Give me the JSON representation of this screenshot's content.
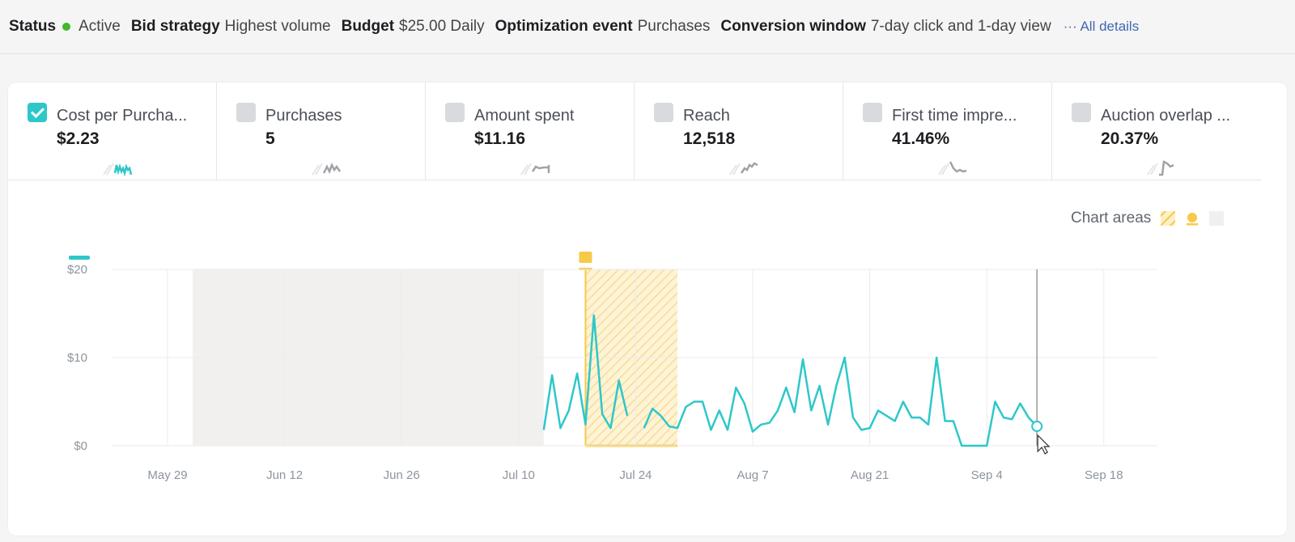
{
  "topbar": {
    "status_label": "Status",
    "status_value": "Active",
    "bid_label": "Bid strategy",
    "bid_value": "Highest volume",
    "budget_label": "Budget",
    "budget_value": "$25.00 Daily",
    "opt_label": "Optimization event",
    "opt_value": "Purchases",
    "conv_label": "Conversion window",
    "conv_value": "7-day click and 1-day view",
    "all_details": "··· All details"
  },
  "metrics": [
    {
      "label": "Cost per Purcha...",
      "value": "$2.23",
      "checked": true
    },
    {
      "label": "Purchases",
      "value": "5",
      "checked": false
    },
    {
      "label": "Amount spent",
      "value": "$11.16",
      "checked": false
    },
    {
      "label": "Reach",
      "value": "12,518",
      "checked": false
    },
    {
      "label": "First time impre...",
      "value": "41.46%",
      "checked": false
    },
    {
      "label": "Auction overlap ...",
      "value": "20.37%",
      "checked": false
    }
  ],
  "chart_areas_label": "Chart areas",
  "colors": {
    "series": "#2ec7c9",
    "highlight": "#f7c948",
    "shade": "#f1f0ee"
  },
  "chart_data": {
    "type": "line",
    "ylim": [
      0,
      20
    ],
    "y_ticks": [
      "$0",
      "$10",
      "$20"
    ],
    "x_ticks": [
      "May 29",
      "Jun 12",
      "Jun 26",
      "Jul 10",
      "Jul 24",
      "Aug 7",
      "Aug 21",
      "Sep 4",
      "Sep 18"
    ],
    "segments": [
      [
        [
          "Jul 13",
          1.8
        ],
        [
          "Jul 14",
          8
        ],
        [
          "Jul 15",
          2
        ],
        [
          "Jul 16",
          4
        ],
        [
          "Jul 17",
          8.2
        ],
        [
          "Jul 18",
          2.4
        ],
        [
          "Jul 19",
          14.8
        ],
        [
          "Jul 20",
          3.6
        ],
        [
          "Jul 21",
          2
        ],
        [
          "Jul 22",
          7.4
        ],
        [
          "Jul 23",
          3.4
        ]
      ],
      [
        [
          "Jul 25",
          2
        ],
        [
          "Jul 26",
          4.2
        ],
        [
          "Jul 27",
          3.4
        ],
        [
          "Jul 28",
          2.2
        ],
        [
          "Jul 29",
          2
        ],
        [
          "Jul 30",
          4.4
        ],
        [
          "Jul 31",
          5
        ],
        [
          "Aug 1",
          5
        ],
        [
          "Aug 2",
          1.8
        ],
        [
          "Aug 3",
          4
        ],
        [
          "Aug 4",
          1.8
        ],
        [
          "Aug 5",
          6.6
        ],
        [
          "Aug 6",
          4.8
        ],
        [
          "Aug 7",
          1.6
        ],
        [
          "Aug 8",
          2.4
        ],
        [
          "Aug 9",
          2.6
        ],
        [
          "Aug 10",
          4
        ],
        [
          "Aug 11",
          6.6
        ],
        [
          "Aug 12",
          3.8
        ],
        [
          "Aug 13",
          9.8
        ],
        [
          "Aug 14",
          4
        ],
        [
          "Aug 15",
          6.8
        ],
        [
          "Aug 16",
          2.4
        ],
        [
          "Aug 17",
          6.8
        ],
        [
          "Aug 18",
          10
        ],
        [
          "Aug 19",
          3.2
        ],
        [
          "Aug 20",
          1.8
        ],
        [
          "Aug 21",
          2
        ],
        [
          "Aug 22",
          4
        ],
        [
          "Aug 23",
          3.4
        ],
        [
          "Aug 24",
          2.8
        ],
        [
          "Aug 25",
          5
        ],
        [
          "Aug 26",
          3.2
        ],
        [
          "Aug 27",
          3.2
        ],
        [
          "Aug 28",
          2.4
        ],
        [
          "Aug 29",
          10
        ],
        [
          "Aug 30",
          2.8
        ],
        [
          "Aug 31",
          2.8
        ],
        [
          "Sep 1",
          0
        ],
        [
          "Sep 2",
          0
        ],
        [
          "Sep 3",
          0
        ],
        [
          "Sep 4",
          0
        ],
        [
          "Sep 5",
          5
        ],
        [
          "Sep 6",
          3.2
        ],
        [
          "Sep 7",
          3
        ],
        [
          "Sep 8",
          4.8
        ],
        [
          "Sep 9",
          3.2
        ],
        [
          "Sep 10",
          2.2
        ]
      ]
    ],
    "shaded_range": [
      "Jun 1",
      "Jul 13"
    ],
    "highlight_range": [
      "Jul 18",
      "Jul 29"
    ],
    "cursor_date": "Sep 10"
  }
}
